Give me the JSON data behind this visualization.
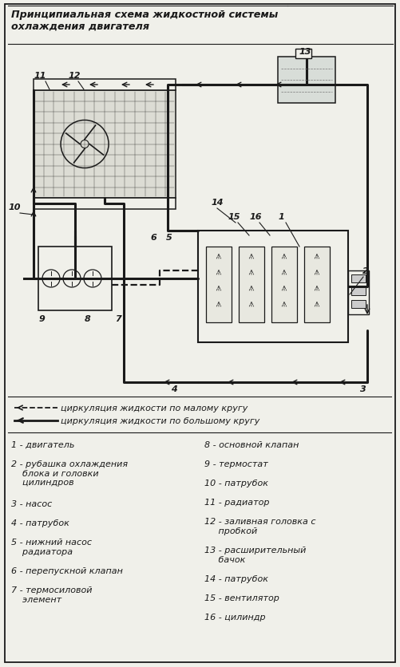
{
  "title": "Принципиальная схема жидкостной системы\nохлаждения двигателя",
  "bg_color": "#f0f0ea",
  "border_color": "#1a1a1a",
  "items_left": [
    "1 - двигатель",
    "2 - рубашка охлаждения\n    блока и головки\n    цилиндров",
    "3 - насос",
    "4 - патрубок",
    "5 - нижний насос\n    радиатора",
    "6 - перепускной клапан",
    "7 - термосиловой\n    элемент"
  ],
  "items_right": [
    "8 - основной клапан",
    "9 - термостат",
    "10 - патрубок",
    "11 - радиатор",
    "12 - заливная головка с\n     пробкой",
    "13 - расширительный\n     бачок",
    "14 - патрубок",
    "15 - вентилятор",
    "16 - цилиндр"
  ]
}
